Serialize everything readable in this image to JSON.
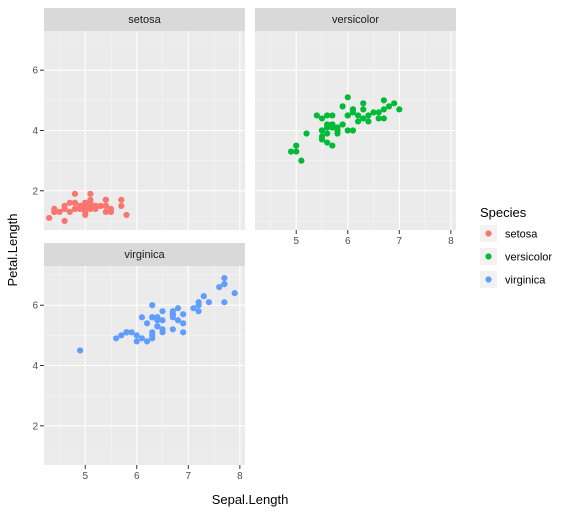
{
  "chart_data": {
    "type": "scatter",
    "xlabel": "Sepal.Length",
    "ylabel": "Petal.Length",
    "xlim": [
      4.2,
      8.1
    ],
    "ylim": [
      0.7,
      7.3
    ],
    "x_ticks": [
      5,
      6,
      7,
      8
    ],
    "y_ticks": [
      2,
      4,
      6
    ],
    "grid": true,
    "facet_layout": "2x2",
    "legend": {
      "title": "Species",
      "placement": "right",
      "entries": [
        {
          "label": "setosa",
          "color": "#F8766D"
        },
        {
          "label": "versicolor",
          "color": "#00BA38"
        },
        {
          "label": "virginica",
          "color": "#619CFF"
        }
      ]
    },
    "facets": [
      {
        "label": "setosa",
        "color": "#F8766D",
        "points": [
          [
            5.1,
            1.4
          ],
          [
            4.9,
            1.4
          ],
          [
            4.7,
            1.3
          ],
          [
            4.6,
            1.5
          ],
          [
            5.0,
            1.4
          ],
          [
            5.4,
            1.7
          ],
          [
            4.6,
            1.4
          ],
          [
            5.0,
            1.5
          ],
          [
            4.4,
            1.4
          ],
          [
            4.9,
            1.5
          ],
          [
            5.4,
            1.5
          ],
          [
            4.8,
            1.6
          ],
          [
            4.8,
            1.4
          ],
          [
            4.3,
            1.1
          ],
          [
            5.8,
            1.2
          ],
          [
            5.7,
            1.5
          ],
          [
            5.4,
            1.3
          ],
          [
            5.1,
            1.4
          ],
          [
            5.7,
            1.7
          ],
          [
            5.1,
            1.5
          ],
          [
            5.4,
            1.7
          ],
          [
            5.1,
            1.5
          ],
          [
            4.6,
            1.0
          ],
          [
            5.1,
            1.7
          ],
          [
            4.8,
            1.9
          ],
          [
            5.0,
            1.6
          ],
          [
            5.0,
            1.6
          ],
          [
            5.2,
            1.5
          ],
          [
            5.2,
            1.4
          ],
          [
            4.7,
            1.6
          ],
          [
            4.8,
            1.6
          ],
          [
            5.4,
            1.5
          ],
          [
            5.2,
            1.5
          ],
          [
            5.5,
            1.4
          ],
          [
            4.9,
            1.5
          ],
          [
            5.0,
            1.2
          ],
          [
            5.5,
            1.3
          ],
          [
            4.9,
            1.4
          ],
          [
            4.4,
            1.3
          ],
          [
            5.1,
            1.5
          ],
          [
            5.0,
            1.3
          ],
          [
            4.5,
            1.3
          ],
          [
            4.4,
            1.3
          ],
          [
            5.0,
            1.6
          ],
          [
            5.1,
            1.9
          ],
          [
            4.8,
            1.4
          ],
          [
            5.1,
            1.6
          ],
          [
            4.6,
            1.4
          ],
          [
            5.3,
            1.5
          ],
          [
            5.0,
            1.4
          ]
        ]
      },
      {
        "label": "versicolor",
        "color": "#00BA38",
        "points": [
          [
            7.0,
            4.7
          ],
          [
            6.4,
            4.5
          ],
          [
            6.9,
            4.9
          ],
          [
            5.5,
            4.0
          ],
          [
            6.5,
            4.6
          ],
          [
            5.7,
            4.5
          ],
          [
            6.3,
            4.7
          ],
          [
            4.9,
            3.3
          ],
          [
            6.6,
            4.6
          ],
          [
            5.2,
            3.9
          ],
          [
            5.0,
            3.5
          ],
          [
            5.9,
            4.2
          ],
          [
            6.0,
            4.0
          ],
          [
            6.1,
            4.7
          ],
          [
            5.6,
            3.6
          ],
          [
            6.7,
            4.4
          ],
          [
            5.6,
            4.5
          ],
          [
            5.8,
            4.1
          ],
          [
            6.2,
            4.5
          ],
          [
            5.6,
            3.9
          ],
          [
            5.9,
            4.8
          ],
          [
            6.1,
            4.0
          ],
          [
            6.3,
            4.9
          ],
          [
            6.1,
            4.7
          ],
          [
            6.4,
            4.3
          ],
          [
            6.6,
            4.4
          ],
          [
            6.8,
            4.8
          ],
          [
            6.7,
            5.0
          ],
          [
            6.0,
            4.5
          ],
          [
            5.7,
            3.5
          ],
          [
            5.5,
            3.8
          ],
          [
            5.5,
            3.7
          ],
          [
            5.8,
            3.9
          ],
          [
            6.0,
            5.1
          ],
          [
            5.4,
            4.5
          ],
          [
            6.0,
            4.5
          ],
          [
            6.7,
            4.7
          ],
          [
            6.3,
            4.4
          ],
          [
            5.6,
            4.1
          ],
          [
            5.5,
            4.0
          ],
          [
            5.5,
            4.4
          ],
          [
            6.1,
            4.6
          ],
          [
            5.8,
            4.0
          ],
          [
            5.0,
            3.3
          ],
          [
            5.6,
            4.2
          ],
          [
            5.7,
            4.2
          ],
          [
            5.7,
            4.2
          ],
          [
            6.2,
            4.3
          ],
          [
            5.1,
            3.0
          ],
          [
            5.7,
            4.1
          ]
        ]
      },
      {
        "label": "virginica",
        "color": "#619CFF",
        "points": [
          [
            6.3,
            6.0
          ],
          [
            5.8,
            5.1
          ],
          [
            7.1,
            5.9
          ],
          [
            6.3,
            5.6
          ],
          [
            6.5,
            5.8
          ],
          [
            7.6,
            6.6
          ],
          [
            4.9,
            4.5
          ],
          [
            7.3,
            6.3
          ],
          [
            6.7,
            5.8
          ],
          [
            7.2,
            6.1
          ],
          [
            6.5,
            5.1
          ],
          [
            6.4,
            5.3
          ],
          [
            6.8,
            5.5
          ],
          [
            5.7,
            5.0
          ],
          [
            5.8,
            5.1
          ],
          [
            6.4,
            5.3
          ],
          [
            6.5,
            5.5
          ],
          [
            7.7,
            6.7
          ],
          [
            7.7,
            6.9
          ],
          [
            6.0,
            5.0
          ],
          [
            6.9,
            5.7
          ],
          [
            5.6,
            4.9
          ],
          [
            7.7,
            6.7
          ],
          [
            6.3,
            4.9
          ],
          [
            6.7,
            5.7
          ],
          [
            7.2,
            6.0
          ],
          [
            6.2,
            4.8
          ],
          [
            6.1,
            4.9
          ],
          [
            6.4,
            5.6
          ],
          [
            7.2,
            5.8
          ],
          [
            7.4,
            6.1
          ],
          [
            7.9,
            6.4
          ],
          [
            6.4,
            5.6
          ],
          [
            6.3,
            5.1
          ],
          [
            6.1,
            5.6
          ],
          [
            7.7,
            6.1
          ],
          [
            6.3,
            5.6
          ],
          [
            6.4,
            5.5
          ],
          [
            6.0,
            4.8
          ],
          [
            6.9,
            5.4
          ],
          [
            6.7,
            5.6
          ],
          [
            6.9,
            5.1
          ],
          [
            5.8,
            5.1
          ],
          [
            6.8,
            5.9
          ],
          [
            6.7,
            5.7
          ],
          [
            6.7,
            5.2
          ],
          [
            6.3,
            5.0
          ],
          [
            6.5,
            5.2
          ],
          [
            6.2,
            5.4
          ],
          [
            5.9,
            5.1
          ]
        ]
      }
    ]
  }
}
